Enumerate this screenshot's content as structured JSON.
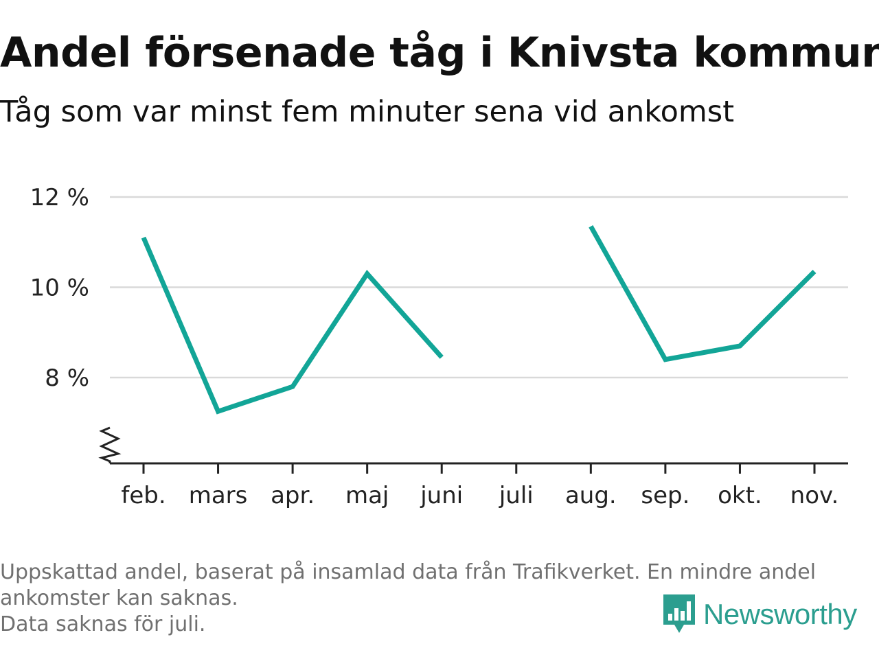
{
  "title": "Andel försenade tåg i Knivsta kommun",
  "subtitle": "Tåg som var minst fem minuter sena vid ankomst",
  "footnote": {
    "line1": "Uppskattad andel, baserat på insamlad data från Trafikverket. En mindre andel",
    "line2": "ankomster kan saknas.",
    "line3": "Data saknas för juli."
  },
  "logo": {
    "text": "Newsworthy",
    "icon": "newsworthy-logo-icon",
    "color": "#2b9e8f"
  },
  "colors": {
    "line": "#12a597",
    "grid": "#d9d9d9",
    "axis": "#222222"
  },
  "chart_data": {
    "type": "line",
    "categories": [
      "feb.",
      "mars",
      "apr.",
      "maj",
      "juni",
      "juli",
      "aug.",
      "sep.",
      "okt.",
      "nov."
    ],
    "series": [
      {
        "values": [
          11.1,
          7.25,
          7.8,
          10.3,
          8.45,
          null,
          11.35,
          8.4,
          8.7,
          10.35
        ]
      }
    ],
    "yticks": [
      {
        "value": 8,
        "label": "8 %"
      },
      {
        "value": 10,
        "label": "10 %"
      },
      {
        "value": 12,
        "label": "12 %"
      }
    ],
    "ylim": [
      6.2,
      12.3
    ],
    "y_axis_break": true,
    "grid": true,
    "xlabel": "",
    "ylabel": ""
  }
}
